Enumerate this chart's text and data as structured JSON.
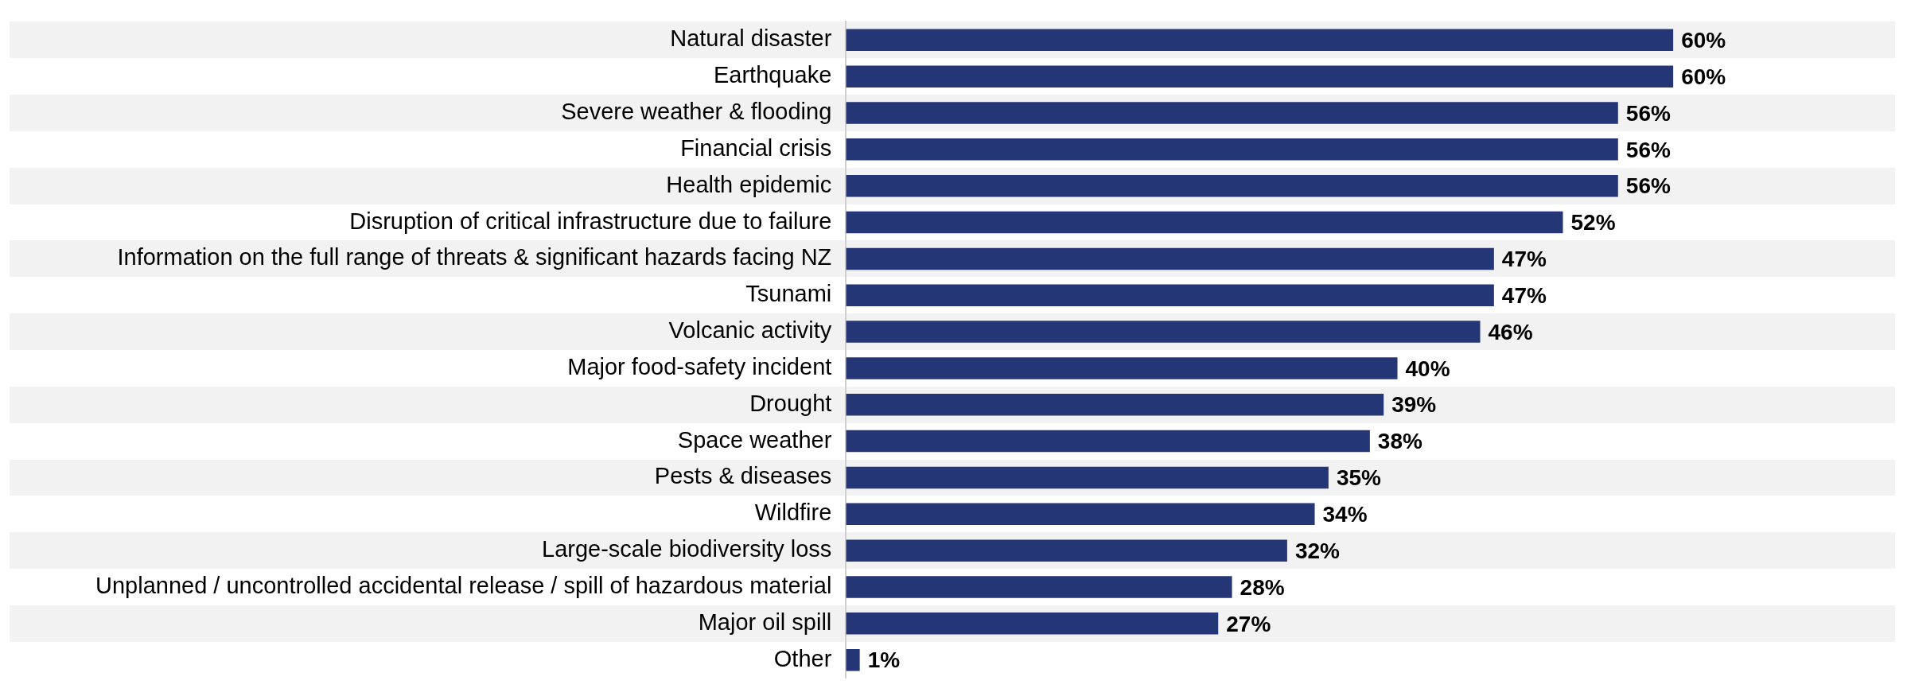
{
  "chart_data": {
    "type": "bar",
    "orientation": "horizontal",
    "color": "#253676",
    "categories": [
      "Natural disaster",
      "Earthquake",
      "Severe weather & flooding",
      "Financial crisis",
      "Health epidemic",
      "Disruption of critical infrastructure due to failure",
      "Information on the full range of threats & significant hazards facing NZ",
      "Tsunami",
      "Volcanic activity",
      "Major food-safety incident",
      "Drought",
      "Space weather",
      "Pests & diseases",
      "Wildfire",
      "Large-scale biodiversity loss",
      "Unplanned / uncontrolled accidental release / spill of hazardous material",
      "Major oil spill",
      "Other"
    ],
    "values": [
      60,
      60,
      56,
      56,
      56,
      52,
      47,
      47,
      46,
      40,
      39,
      38,
      35,
      34,
      32,
      28,
      27,
      1
    ],
    "value_labels": [
      "60%",
      "60%",
      "56%",
      "56%",
      "56%",
      "52%",
      "47%",
      "47%",
      "46%",
      "40%",
      "39%",
      "38%",
      "35%",
      "34%",
      "32%",
      "28%",
      "27%",
      "1%"
    ],
    "legend": false
  }
}
